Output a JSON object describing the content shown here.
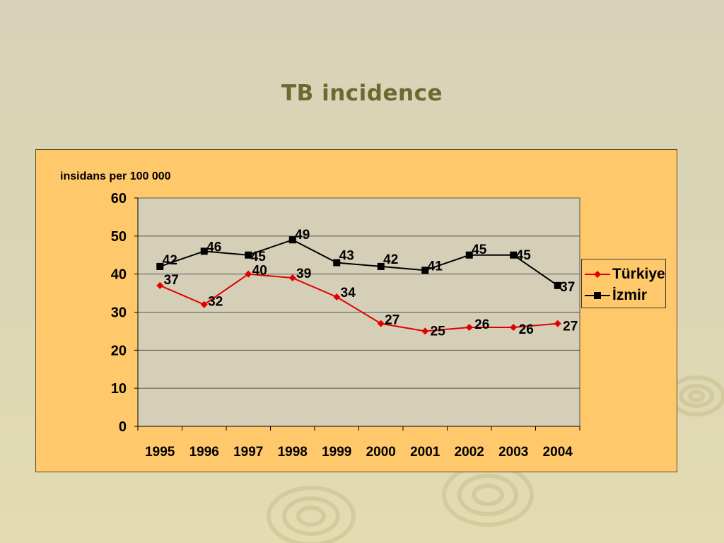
{
  "slide": {
    "title": "TB incidence"
  },
  "colors": {
    "background": "#d8d2b8",
    "chart_area": "#ffc96b",
    "plot_area": "#d6cfb8",
    "title": "#6b6a30",
    "turkiye": "#e00000",
    "izmir": "#000000"
  },
  "chart_data": {
    "type": "line",
    "title": "",
    "ylabel": "insidans per 100 000",
    "xlabel": "",
    "categories": [
      "1995",
      "1996",
      "1997",
      "1998",
      "1999",
      "2000",
      "2001",
      "2002",
      "2003",
      "2004"
    ],
    "ylim": [
      0,
      60
    ],
    "yticks": [
      0,
      10,
      20,
      30,
      40,
      50,
      60
    ],
    "grid": "horizontal",
    "legend_position": "right",
    "series": [
      {
        "name": "Türkiye",
        "color": "#e00000",
        "marker": "diamond-icon",
        "values": [
          37,
          32,
          40,
          39,
          34,
          27,
          25,
          26,
          26,
          27
        ]
      },
      {
        "name": "İzmir",
        "color": "#000000",
        "marker": "square-icon",
        "values": [
          42,
          46,
          45,
          49,
          43,
          42,
          41,
          45,
          45,
          37
        ]
      }
    ]
  }
}
